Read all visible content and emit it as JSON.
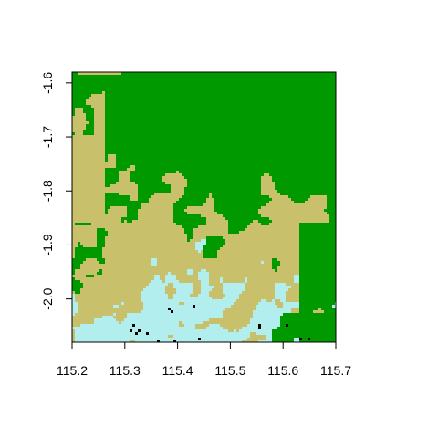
{
  "map": {
    "colors": {
      "forest": "#009900",
      "cropland": "#c8c06a",
      "water": "#b3eeee",
      "urban": "#000000",
      "frame": "#000000",
      "background": "#ffffff"
    },
    "x_ticks": [
      "115.2",
      "115.3",
      "115.4",
      "115.5",
      "115.6",
      "115.7"
    ],
    "y_ticks": [
      "-1.6",
      "-1.7",
      "-1.8",
      "-1.9",
      "-2.0"
    ]
  },
  "chart_data": {
    "type": "heatmap",
    "xlim": [
      115.2,
      115.7
    ],
    "ylim": [
      -2.08,
      -1.58
    ],
    "x_tick_values": [
      115.2,
      115.3,
      115.4,
      115.5,
      115.6,
      115.7
    ],
    "y_tick_values": [
      -1.6,
      -1.7,
      -1.8,
      -1.9,
      -2.0
    ],
    "grid": false,
    "legend": "none"
  }
}
